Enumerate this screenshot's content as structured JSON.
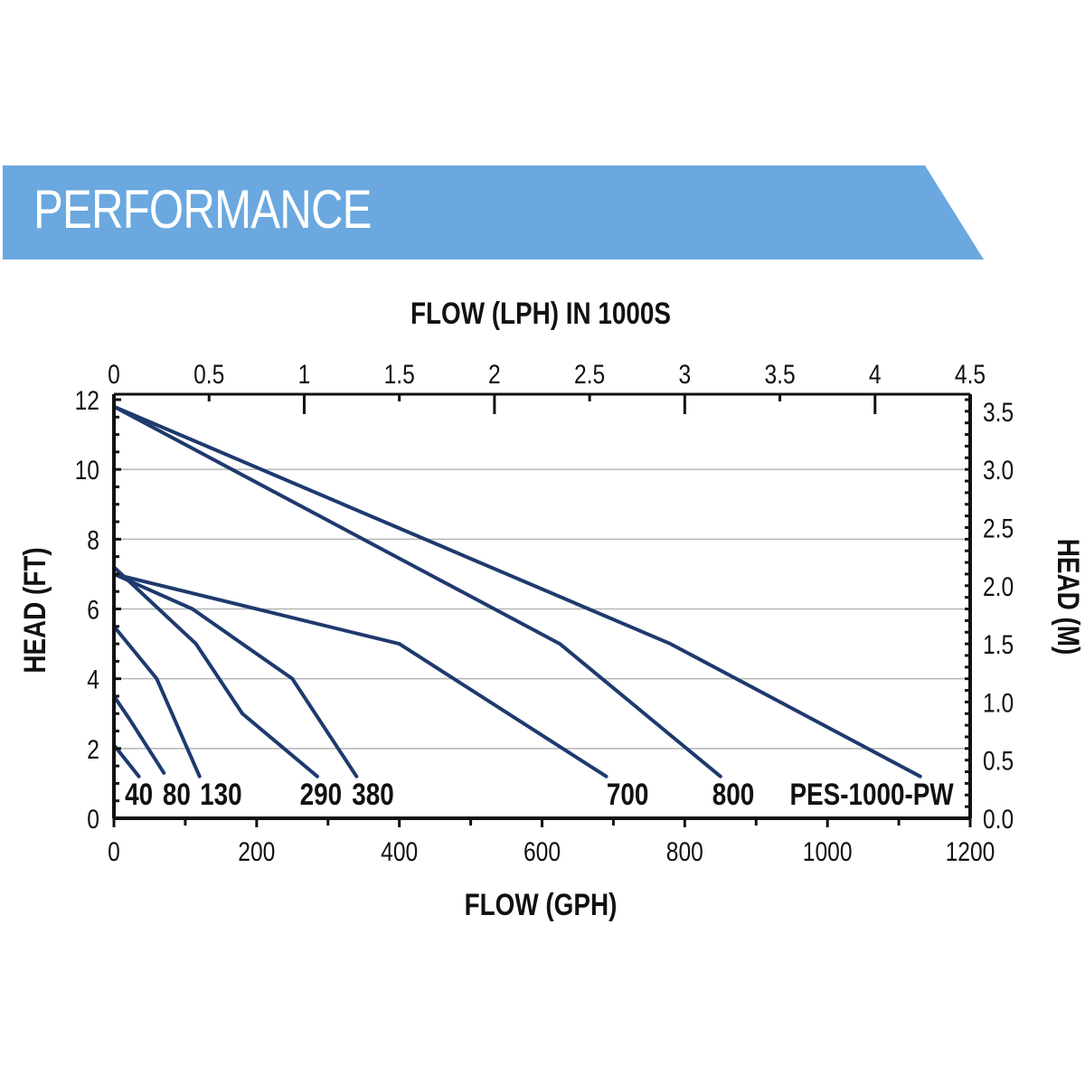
{
  "header": {
    "title": "PERFORMANCE"
  },
  "colors": {
    "banner": "#6aa8df",
    "curve": "#1e3a6e",
    "grid": "#b5b5b5",
    "axis": "#111111"
  },
  "chart_data": {
    "type": "line",
    "title": "",
    "xlabel": "FLOW (GPH)",
    "ylabel": "HEAD (FT)",
    "x2label": "FLOW (LPH) IN 1000S",
    "y2label": "HEAD (M)",
    "xlim": [
      0,
      1200
    ],
    "ylim": [
      0,
      12
    ],
    "x2lim": [
      0,
      4.5
    ],
    "y2lim": [
      0,
      3.6
    ],
    "x_ticks": [
      "0",
      "200",
      "400",
      "600",
      "800",
      "1000",
      "1200"
    ],
    "y_ticks": [
      "0",
      "2",
      "4",
      "6",
      "8",
      "10",
      "12"
    ],
    "x2_ticks": [
      "0",
      "0.5",
      "1",
      "1.5",
      "2",
      "2.5",
      "3",
      "3.5",
      "4",
      "4.5"
    ],
    "y2_ticks": [
      "0.0",
      "0.5",
      "1.0",
      "1.5",
      "2.0",
      "2.5",
      "3.0",
      "3.5"
    ],
    "grid": "horizontal",
    "series": [
      {
        "name": "40",
        "x": [
          0,
          35
        ],
        "y": [
          2.1,
          1.2
        ]
      },
      {
        "name": "80",
        "x": [
          0,
          20,
          70
        ],
        "y": [
          3.5,
          2.9,
          1.3
        ]
      },
      {
        "name": "130",
        "x": [
          0,
          60,
          120
        ],
        "y": [
          5.5,
          4.0,
          1.2
        ]
      },
      {
        "name": "290",
        "x": [
          0,
          115,
          180,
          285
        ],
        "y": [
          7.2,
          5.0,
          3.0,
          1.2
        ]
      },
      {
        "name": "380",
        "x": [
          0,
          110,
          250,
          340
        ],
        "y": [
          7.0,
          6.0,
          4.0,
          1.2
        ]
      },
      {
        "name": "700",
        "x": [
          0,
          400,
          690
        ],
        "y": [
          7.0,
          5.0,
          1.2
        ]
      },
      {
        "name": "800",
        "x": [
          0,
          625,
          850
        ],
        "y": [
          11.8,
          5.0,
          1.2
        ]
      },
      {
        "name": "PES-1000-PW",
        "x": [
          0,
          780,
          1130
        ],
        "y": [
          11.8,
          5.0,
          1.2
        ]
      }
    ],
    "series_labels": [
      {
        "name": "40",
        "x": 35,
        "y": 0.7
      },
      {
        "name": "80",
        "x": 88,
        "y": 0.7
      },
      {
        "name": "130",
        "x": 150,
        "y": 0.7
      },
      {
        "name": "290",
        "x": 290,
        "y": 0.7
      },
      {
        "name": "380",
        "x": 363,
        "y": 0.7
      },
      {
        "name": "700",
        "x": 720,
        "y": 0.7
      },
      {
        "name": "800",
        "x": 868,
        "y": 0.7
      },
      {
        "name": "PES-1000-PW",
        "x": 1062,
        "y": 0.7
      }
    ]
  }
}
